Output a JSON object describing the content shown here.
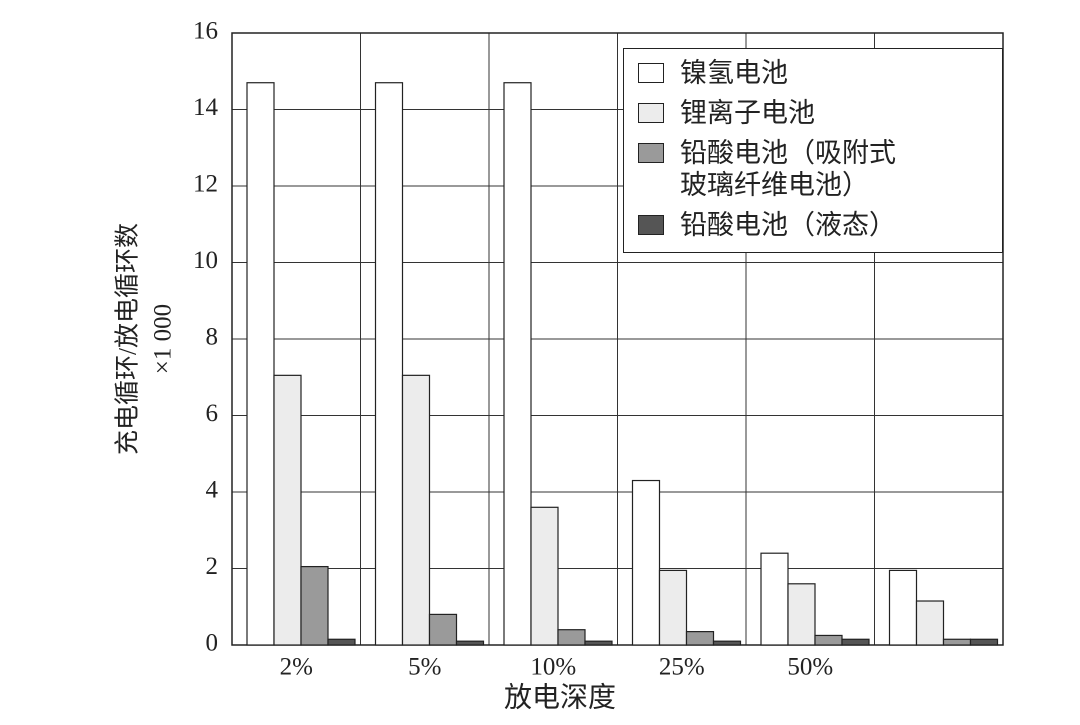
{
  "chart_data": {
    "type": "bar",
    "y_label": "充电循环/放电循环数",
    "y_unit": "×1 000",
    "x_label": "放电深度",
    "categories": [
      "2%",
      "5%",
      "10%",
      "25%",
      "50%",
      null
    ],
    "series": [
      {
        "name": "镍氢电池",
        "color": "#ffffff",
        "values": [
          14.7,
          14.7,
          14.7,
          4.3,
          2.4,
          1.95
        ]
      },
      {
        "name": "锂离子电池",
        "color": "#ececec",
        "values": [
          7.05,
          7.05,
          3.6,
          1.95,
          1.6,
          1.15
        ]
      },
      {
        "name": "铅酸电池（吸附式玻璃纤维电池）",
        "color": "#9a9a9a",
        "values": [
          2.05,
          0.8,
          0.4,
          0.35,
          0.25,
          0.15
        ]
      },
      {
        "name": "铅酸电池（液态）",
        "color": "#555555",
        "values": [
          0.15,
          0.1,
          0.1,
          0.1,
          0.15,
          0.15
        ]
      }
    ],
    "ylim": [
      0,
      16
    ],
    "yticks": [
      0,
      2,
      4,
      6,
      8,
      10,
      12,
      14,
      16
    ],
    "grid": true
  }
}
